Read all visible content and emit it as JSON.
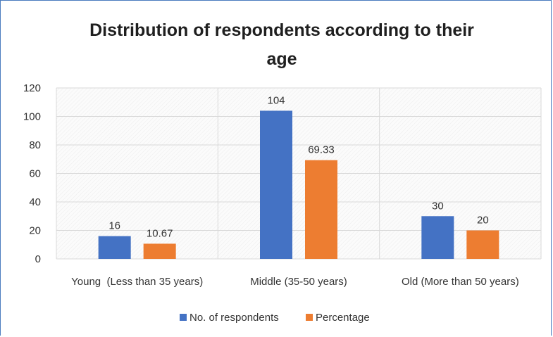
{
  "colors": {
    "series_1": "#4472c4",
    "series_2": "#ed7d31",
    "grid": "#d9d9d9",
    "frame": "#4a7bbf"
  },
  "chart_data": {
    "type": "bar",
    "title": "Distribution of respondents according to their age",
    "title_lines": [
      "Distribution of respondents according to their",
      "age"
    ],
    "categories": [
      "Young  (Less than 35 years)",
      "Middle (35-50 years)",
      "Old (More than 50 years)"
    ],
    "series": [
      {
        "name": "No. of respondents",
        "values": [
          16,
          104,
          30
        ],
        "labels": [
          "16",
          "104",
          "30"
        ]
      },
      {
        "name": "Percentage",
        "values": [
          10.67,
          69.33,
          20
        ],
        "labels": [
          "10.67",
          "69.33",
          "20"
        ]
      }
    ],
    "y_ticks": [
      "0",
      "20",
      "40",
      "60",
      "80",
      "100",
      "120"
    ],
    "ylim": [
      0,
      120
    ],
    "xlabel": "",
    "ylabel": "",
    "grid": true,
    "legend_position": "bottom"
  }
}
